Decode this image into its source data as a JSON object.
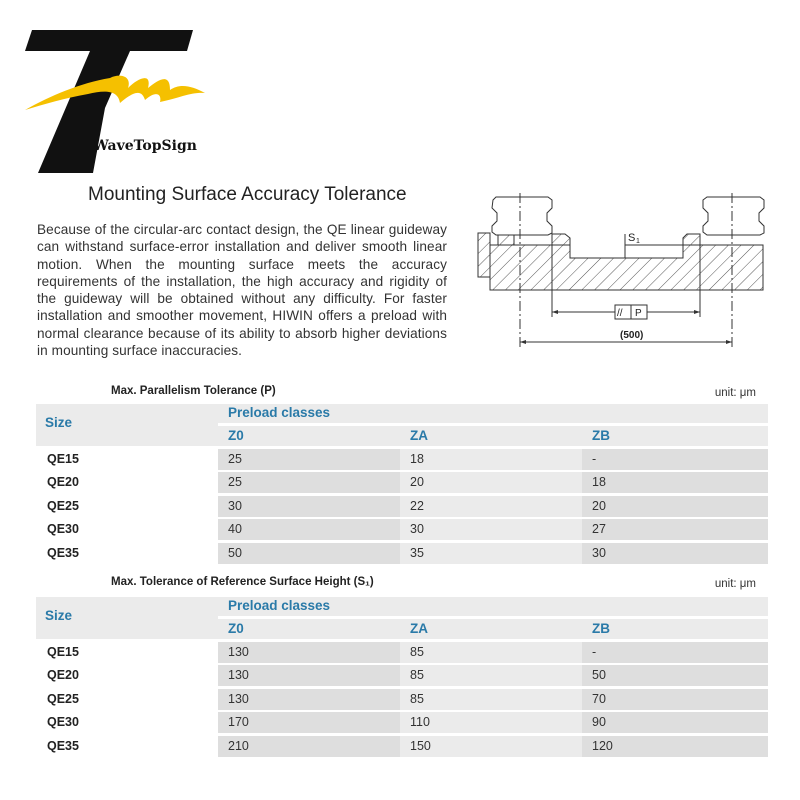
{
  "logo": {
    "brand": "WaveTopSign",
    "colors": {
      "black": "#111111",
      "yellow": "#f5c000"
    }
  },
  "section": {
    "title": "Mounting Surface Accuracy Tolerance",
    "body": "Because of the circular-arc contact design, the QE linear guideway can withstand surface-error installation and deliver smooth linear motion. When the mounting surface meets the accuracy requirements of the installation, the high accuracy and rigidity of the guideway will be obtained without any difficulty. For faster installation and smoother movement, HIWIN offers a preload with normal clearance because of its ability to absorb higher deviations in mounting surface inaccuracies."
  },
  "diagram": {
    "s1_label": "S",
    "s1_sub": "1",
    "parallel_symbol": "//",
    "p_label": "P",
    "span_label": "(500)"
  },
  "tables": [
    {
      "title": "Max. Parallelism Tolerance (P)",
      "unit": "unit: μm",
      "size_header": "Size",
      "group_header": "Preload classes",
      "columns": [
        "Z0",
        "ZA",
        "ZB"
      ],
      "rows": [
        {
          "size": "QE15",
          "values": [
            "25",
            "18",
            "-"
          ]
        },
        {
          "size": "QE20",
          "values": [
            "25",
            "20",
            "18"
          ]
        },
        {
          "size": "QE25",
          "values": [
            "30",
            "22",
            "20"
          ]
        },
        {
          "size": "QE30",
          "values": [
            "40",
            "30",
            "27"
          ]
        },
        {
          "size": "QE35",
          "values": [
            "50",
            "35",
            "30"
          ]
        }
      ]
    },
    {
      "title": "Max. Tolerance of Reference Surface Height (S₁)",
      "unit": "unit: μm",
      "size_header": "Size",
      "group_header": "Preload classes",
      "columns": [
        "Z0",
        "ZA",
        "ZB"
      ],
      "rows": [
        {
          "size": "QE15",
          "values": [
            "130",
            "85",
            "-"
          ]
        },
        {
          "size": "QE20",
          "values": [
            "130",
            "85",
            "50"
          ]
        },
        {
          "size": "QE25",
          "values": [
            "130",
            "85",
            "70"
          ]
        },
        {
          "size": "QE30",
          "values": [
            "170",
            "110",
            "90"
          ]
        },
        {
          "size": "QE35",
          "values": [
            "210",
            "150",
            "120"
          ]
        }
      ]
    }
  ]
}
